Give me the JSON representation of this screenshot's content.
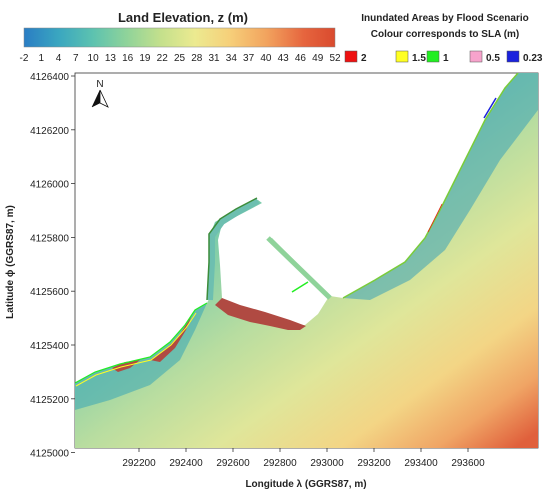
{
  "colorbar": {
    "title": "Land Elevation, z (m)",
    "ticks": [
      "-2",
      "1",
      "4",
      "7",
      "10",
      "13",
      "16",
      "19",
      "22",
      "25",
      "28",
      "31",
      "34",
      "37",
      "40",
      "43",
      "46",
      "49",
      "52"
    ],
    "colors": [
      "#2a7dc4",
      "#3aa6c0",
      "#5cc2b0",
      "#8fd39a",
      "#c4e08c",
      "#ecea90",
      "#f6d07a",
      "#f2a35e",
      "#e6653e",
      "#d94a2e"
    ]
  },
  "legend": {
    "title_line1": "Inundated Areas by Flood Scenario",
    "title_line2": "Colour corresponds to SLA (m)",
    "items": [
      {
        "label": "2",
        "color": "#ee1111"
      },
      {
        "label": "1.5",
        "color": "#ffff22"
      },
      {
        "label": "1",
        "color": "#22ee22"
      },
      {
        "label": "0.5",
        "color": "#f7a3cc"
      },
      {
        "label": "0.23",
        "color": "#1a22dd"
      }
    ]
  },
  "axes": {
    "xlabel": "Longitude λ (GGRS87, m)",
    "ylabel": "Latitude ϕ (GGRS87, m)",
    "xticks": [
      "292200",
      "292400",
      "292600",
      "292800",
      "293000",
      "293200",
      "293400",
      "293600"
    ],
    "yticks": [
      "4126400",
      "4126200",
      "4126000",
      "4125800",
      "4125600",
      "4125400",
      "4125200",
      "4125000"
    ]
  },
  "north_arrow": {
    "label": "N"
  },
  "colors": {
    "sea": "#ffffff",
    "land_low": "#5cbfb3",
    "land_mid": "#c9e3a0",
    "land_high": "#f2b870",
    "land_peak": "#e0603c",
    "inundated_2m": "#b34a44"
  }
}
